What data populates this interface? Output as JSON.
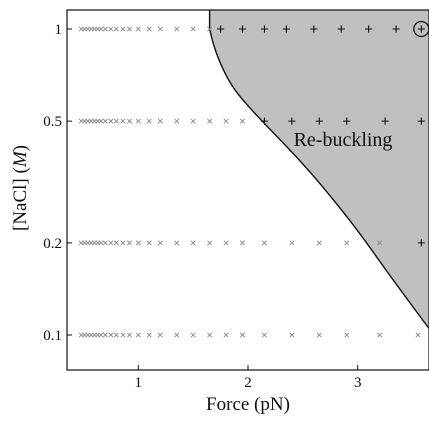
{
  "chart_data": {
    "type": "scatter",
    "title": "",
    "xlabel": "Force (pN)",
    "ylabel_main": "[NaCl] (",
    "ylabel_unit": "M",
    "ylabel_close": ")",
    "xlim": [
      0.35,
      3.65
    ],
    "ylim": [
      0.0,
      1.0
    ],
    "x_ticks": [
      1,
      2,
      3
    ],
    "x_tick_labels": [
      "1",
      "2",
      "3"
    ],
    "y_ticks": [
      0.1,
      0.2,
      0.5,
      1.0
    ],
    "y_tick_labels": [
      "0.1",
      "0.2",
      "0.5",
      "1"
    ],
    "y_scale": "log",
    "region_label": "Re-buckling",
    "region_color": "#c0c0c0",
    "boundary": {
      "x": [
        1.65,
        1.68,
        1.74,
        1.85,
        2.0,
        2.2,
        2.45,
        2.7,
        3.0,
        3.3,
        3.65
      ],
      "y": [
        1.0,
        0.9,
        0.78,
        0.65,
        0.56,
        0.47,
        0.38,
        0.3,
        0.22,
        0.155,
        0.105
      ]
    },
    "series": [
      {
        "marker": "x",
        "color": "#888888",
        "points": [
          [
            0.48,
            1.0
          ],
          [
            0.51,
            1.0
          ],
          [
            0.54,
            1.0
          ],
          [
            0.57,
            1.0
          ],
          [
            0.6,
            1.0
          ],
          [
            0.63,
            1.0
          ],
          [
            0.66,
            1.0
          ],
          [
            0.7,
            1.0
          ],
          [
            0.75,
            1.0
          ],
          [
            0.8,
            1.0
          ],
          [
            0.86,
            1.0
          ],
          [
            0.92,
            1.0
          ],
          [
            1.0,
            1.0
          ],
          [
            1.1,
            1.0
          ],
          [
            1.2,
            1.0
          ],
          [
            1.35,
            1.0
          ],
          [
            1.5,
            1.0
          ],
          [
            1.65,
            1.0
          ],
          [
            0.48,
            0.5
          ],
          [
            0.51,
            0.5
          ],
          [
            0.54,
            0.5
          ],
          [
            0.57,
            0.5
          ],
          [
            0.6,
            0.5
          ],
          [
            0.63,
            0.5
          ],
          [
            0.66,
            0.5
          ],
          [
            0.7,
            0.5
          ],
          [
            0.75,
            0.5
          ],
          [
            0.8,
            0.5
          ],
          [
            0.86,
            0.5
          ],
          [
            0.92,
            0.5
          ],
          [
            1.0,
            0.5
          ],
          [
            1.1,
            0.5
          ],
          [
            1.2,
            0.5
          ],
          [
            1.35,
            0.5
          ],
          [
            1.5,
            0.5
          ],
          [
            1.65,
            0.5
          ],
          [
            1.8,
            0.5
          ],
          [
            1.95,
            0.5
          ],
          [
            0.48,
            0.2
          ],
          [
            0.51,
            0.2
          ],
          [
            0.54,
            0.2
          ],
          [
            0.57,
            0.2
          ],
          [
            0.6,
            0.2
          ],
          [
            0.63,
            0.2
          ],
          [
            0.66,
            0.2
          ],
          [
            0.7,
            0.2
          ],
          [
            0.75,
            0.2
          ],
          [
            0.8,
            0.2
          ],
          [
            0.86,
            0.2
          ],
          [
            0.92,
            0.2
          ],
          [
            1.0,
            0.2
          ],
          [
            1.1,
            0.2
          ],
          [
            1.2,
            0.2
          ],
          [
            1.35,
            0.2
          ],
          [
            1.5,
            0.2
          ],
          [
            1.65,
            0.2
          ],
          [
            1.8,
            0.2
          ],
          [
            1.95,
            0.2
          ],
          [
            2.15,
            0.2
          ],
          [
            2.4,
            0.2
          ],
          [
            2.65,
            0.2
          ],
          [
            2.9,
            0.2
          ],
          [
            3.2,
            0.2
          ],
          [
            0.48,
            0.1
          ],
          [
            0.51,
            0.1
          ],
          [
            0.54,
            0.1
          ],
          [
            0.57,
            0.1
          ],
          [
            0.6,
            0.1
          ],
          [
            0.63,
            0.1
          ],
          [
            0.66,
            0.1
          ],
          [
            0.7,
            0.1
          ],
          [
            0.75,
            0.1
          ],
          [
            0.8,
            0.1
          ],
          [
            0.86,
            0.1
          ],
          [
            0.92,
            0.1
          ],
          [
            1.0,
            0.1
          ],
          [
            1.1,
            0.1
          ],
          [
            1.2,
            0.1
          ],
          [
            1.35,
            0.1
          ],
          [
            1.5,
            0.1
          ],
          [
            1.65,
            0.1
          ],
          [
            1.8,
            0.1
          ],
          [
            1.95,
            0.1
          ],
          [
            2.15,
            0.1
          ],
          [
            2.4,
            0.1
          ],
          [
            2.65,
            0.1
          ],
          [
            2.9,
            0.1
          ],
          [
            3.2,
            0.1
          ],
          [
            3.55,
            0.1
          ]
        ]
      },
      {
        "marker": "+",
        "color": "#111111",
        "points": [
          [
            1.75,
            1.0
          ],
          [
            1.95,
            1.0
          ],
          [
            2.15,
            1.0
          ],
          [
            2.35,
            1.0
          ],
          [
            2.6,
            1.0
          ],
          [
            2.85,
            1.0
          ],
          [
            3.1,
            1.0
          ],
          [
            3.35,
            1.0
          ],
          [
            3.58,
            1.0
          ],
          [
            2.15,
            0.5
          ],
          [
            2.4,
            0.5
          ],
          [
            2.65,
            0.5
          ],
          [
            2.9,
            0.5
          ],
          [
            3.25,
            0.5
          ],
          [
            3.58,
            0.5
          ],
          [
            3.58,
            0.2
          ]
        ]
      }
    ],
    "circled_point": [
      3.58,
      1.0
    ]
  }
}
